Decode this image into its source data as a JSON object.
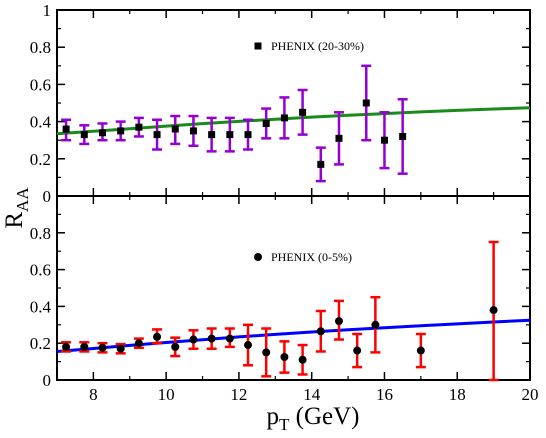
{
  "chart_data": [
    {
      "type": "scatter",
      "panel": "top",
      "xlim": [
        7,
        20
      ],
      "ylim": [
        0,
        1
      ],
      "y_ticks": [
        "0",
        "0.2",
        "0.4",
        "0.6",
        "0.8",
        "1"
      ],
      "legend_position": "top-center",
      "series": [
        {
          "name": "PHENIX (20-30%)",
          "marker": "square",
          "color": "#000000",
          "error_color": "#9400d3",
          "points": [
            {
              "x": 7.25,
              "y": 0.36,
              "lo": 0.3,
              "hi": 0.41
            },
            {
              "x": 7.75,
              "y": 0.33,
              "lo": 0.28,
              "hi": 0.38
            },
            {
              "x": 8.25,
              "y": 0.34,
              "lo": 0.3,
              "hi": 0.39
            },
            {
              "x": 8.75,
              "y": 0.35,
              "lo": 0.3,
              "hi": 0.4
            },
            {
              "x": 9.25,
              "y": 0.37,
              "lo": 0.32,
              "hi": 0.42
            },
            {
              "x": 9.75,
              "y": 0.33,
              "lo": 0.25,
              "hi": 0.41
            },
            {
              "x": 10.25,
              "y": 0.36,
              "lo": 0.28,
              "hi": 0.43
            },
            {
              "x": 10.75,
              "y": 0.35,
              "lo": 0.27,
              "hi": 0.43
            },
            {
              "x": 11.25,
              "y": 0.33,
              "lo": 0.24,
              "hi": 0.42
            },
            {
              "x": 11.75,
              "y": 0.33,
              "lo": 0.24,
              "hi": 0.42
            },
            {
              "x": 12.25,
              "y": 0.33,
              "lo": 0.25,
              "hi": 0.41
            },
            {
              "x": 12.75,
              "y": 0.39,
              "lo": 0.31,
              "hi": 0.47
            },
            {
              "x": 13.25,
              "y": 0.42,
              "lo": 0.31,
              "hi": 0.53
            },
            {
              "x": 13.75,
              "y": 0.45,
              "lo": 0.33,
              "hi": 0.57
            },
            {
              "x": 14.25,
              "y": 0.17,
              "lo": 0.08,
              "hi": 0.26
            },
            {
              "x": 14.75,
              "y": 0.31,
              "lo": 0.17,
              "hi": 0.45
            },
            {
              "x": 15.5,
              "y": 0.5,
              "lo": 0.3,
              "hi": 0.7
            },
            {
              "x": 16.0,
              "y": 0.3,
              "lo": 0.15,
              "hi": 0.45
            },
            {
              "x": 16.5,
              "y": 0.32,
              "lo": 0.12,
              "hi": 0.52
            }
          ]
        }
      ],
      "curve": {
        "color": "#1a8a1a",
        "x": [
          7.0,
          8,
          9,
          10,
          11,
          12,
          13,
          14,
          15,
          16,
          17,
          18,
          19,
          20
        ],
        "y": [
          0.335,
          0.348,
          0.362,
          0.376,
          0.389,
          0.401,
          0.413,
          0.424,
          0.434,
          0.443,
          0.452,
          0.46,
          0.468,
          0.475
        ]
      }
    },
    {
      "type": "scatter",
      "panel": "bottom",
      "xlim": [
        7,
        20
      ],
      "ylim": [
        0,
        1
      ],
      "y_ticks": [
        "0",
        "0.2",
        "0.4",
        "0.6",
        "0.8"
      ],
      "x_ticks": [
        "8",
        "10",
        "12",
        "14",
        "16",
        "18",
        "20"
      ],
      "legend_position": "top-center",
      "series": [
        {
          "name": "PHENIX (0-5%)",
          "marker": "circle",
          "color": "#000000",
          "error_color": "#ff0000",
          "points": [
            {
              "x": 7.25,
              "y": 0.18,
              "lo": 0.155,
              "hi": 0.205
            },
            {
              "x": 7.75,
              "y": 0.18,
              "lo": 0.155,
              "hi": 0.205
            },
            {
              "x": 8.25,
              "y": 0.175,
              "lo": 0.15,
              "hi": 0.2
            },
            {
              "x": 8.75,
              "y": 0.17,
              "lo": 0.145,
              "hi": 0.195
            },
            {
              "x": 9.25,
              "y": 0.2,
              "lo": 0.175,
              "hi": 0.225
            },
            {
              "x": 9.75,
              "y": 0.235,
              "lo": 0.2,
              "hi": 0.275
            },
            {
              "x": 10.25,
              "y": 0.18,
              "lo": 0.13,
              "hi": 0.23
            },
            {
              "x": 10.75,
              "y": 0.22,
              "lo": 0.17,
              "hi": 0.27
            },
            {
              "x": 11.25,
              "y": 0.225,
              "lo": 0.17,
              "hi": 0.28
            },
            {
              "x": 11.75,
              "y": 0.225,
              "lo": 0.18,
              "hi": 0.28
            },
            {
              "x": 12.25,
              "y": 0.19,
              "lo": 0.08,
              "hi": 0.3
            },
            {
              "x": 12.75,
              "y": 0.15,
              "lo": 0.02,
              "hi": 0.28
            },
            {
              "x": 13.25,
              "y": 0.125,
              "lo": 0.04,
              "hi": 0.21
            },
            {
              "x": 13.75,
              "y": 0.11,
              "lo": 0.03,
              "hi": 0.19
            },
            {
              "x": 14.25,
              "y": 0.265,
              "lo": 0.155,
              "hi": 0.375
            },
            {
              "x": 14.75,
              "y": 0.32,
              "lo": 0.22,
              "hi": 0.43
            },
            {
              "x": 15.25,
              "y": 0.16,
              "lo": 0.07,
              "hi": 0.25
            },
            {
              "x": 15.75,
              "y": 0.3,
              "lo": 0.15,
              "hi": 0.45
            },
            {
              "x": 17.0,
              "y": 0.16,
              "lo": 0.07,
              "hi": 0.25
            },
            {
              "x": 19.0,
              "y": 0.38,
              "lo": 0.0,
              "hi": 0.75
            }
          ]
        }
      ],
      "curve": {
        "color": "#0000ff",
        "x": [
          7.0,
          8,
          9,
          10,
          11,
          12,
          13,
          14,
          15,
          16,
          17,
          18,
          19,
          20
        ],
        "y": [
          0.155,
          0.171,
          0.188,
          0.204,
          0.219,
          0.234,
          0.248,
          0.261,
          0.273,
          0.284,
          0.295,
          0.305,
          0.315,
          0.325
        ]
      }
    }
  ],
  "axes": {
    "ylabel_main": "R",
    "ylabel_sub": "AA",
    "xlabel_main": "p",
    "xlabel_sub": "T",
    "xlabel_unit": " (GeV)"
  }
}
